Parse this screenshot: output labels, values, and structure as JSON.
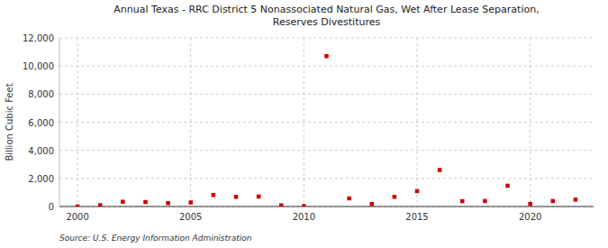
{
  "chart_data": {
    "type": "scatter",
    "title": "Annual Texas - RRC District 5 Nonassociated Natural Gas, Wet After Lease Separation,\nReserves Divestitures",
    "ylabel": "Billion Cubic Feet",
    "annotation": "Source: U.S. Energy Information Administration",
    "x": [
      2000,
      2001,
      2002,
      2003,
      2004,
      2005,
      2006,
      2007,
      2008,
      2009,
      2010,
      2011,
      2012,
      2013,
      2014,
      2015,
      2016,
      2017,
      2018,
      2019,
      2020,
      2021,
      2022
    ],
    "values": [
      5,
      90,
      340,
      320,
      240,
      290,
      820,
      690,
      710,
      80,
      30,
      10700,
      580,
      180,
      690,
      1100,
      2600,
      380,
      390,
      1480,
      190,
      390,
      490
    ],
    "color": "#cc0000",
    "marker": "square",
    "xlim": [
      1999.2,
      2022.8
    ],
    "xticks": [
      2000,
      2005,
      2010,
      2015,
      2020
    ],
    "ylim": [
      0,
      12000
    ],
    "yticks": [
      0,
      {
        "value": 2000,
        "label": "2,000"
      },
      {
        "value": 4000,
        "label": "4,000"
      },
      {
        "value": 6000,
        "label": "6,000"
      },
      {
        "value": 8000,
        "label": "8,000"
      },
      {
        "value": 10000,
        "label": "10,000"
      },
      {
        "value": 12000,
        "label": "12,000"
      }
    ],
    "grid": true
  }
}
